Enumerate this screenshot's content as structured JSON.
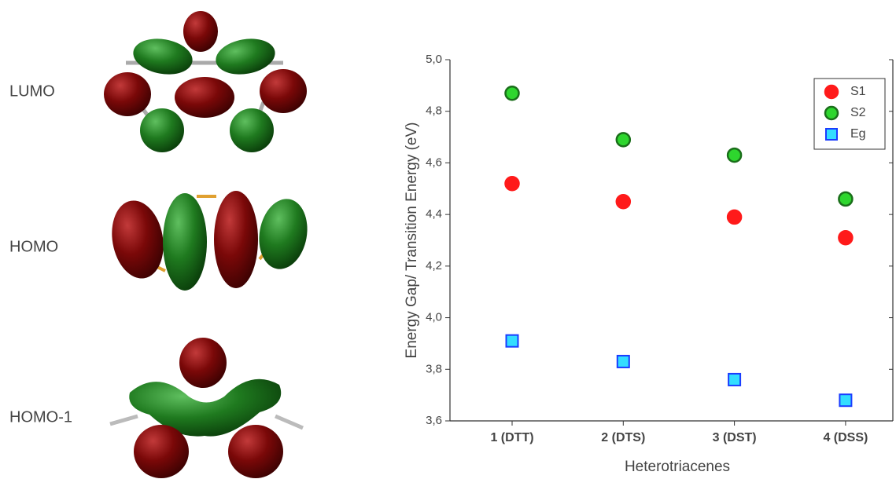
{
  "orbitals": {
    "labels": [
      "LUMO",
      "HOMO",
      "HOMO-1"
    ]
  },
  "chart_data": {
    "type": "scatter",
    "y_label": "Energy Gap/ Transition Energy (eV)",
    "x_label": "Heterotriacenes",
    "categories": [
      "1 (DTT)",
      "2 (DTS)",
      "3 (DST)",
      "4 (DSS)"
    ],
    "series": [
      {
        "name": "S1",
        "color": "#ff1a1a",
        "edge": "#ff1a1a",
        "marker": "circle",
        "values": [
          4.52,
          4.45,
          4.39,
          4.31
        ]
      },
      {
        "name": "S2",
        "color": "#2ed62e",
        "edge": "#1a6e1a",
        "marker": "circle",
        "values": [
          4.87,
          4.69,
          4.63,
          4.46
        ]
      },
      {
        "name": "Eg",
        "color": "#33ddff",
        "edge": "#1a3cff",
        "marker": "square",
        "values": [
          3.91,
          3.83,
          3.76,
          3.68
        ]
      }
    ],
    "ylim": [
      3.6,
      5.0
    ],
    "yticks": [
      {
        "value": 3.6,
        "label": "3,6"
      },
      {
        "value": 3.8,
        "label": "3,8"
      },
      {
        "value": 4.0,
        "label": "4,0"
      },
      {
        "value": 4.2,
        "label": "4,2"
      },
      {
        "value": 4.4,
        "label": "4,4"
      },
      {
        "value": 4.6,
        "label": "4,6"
      },
      {
        "value": 4.8,
        "label": "4,8"
      },
      {
        "value": 5.0,
        "label": "5,0"
      }
    ],
    "legend": "upper right"
  }
}
